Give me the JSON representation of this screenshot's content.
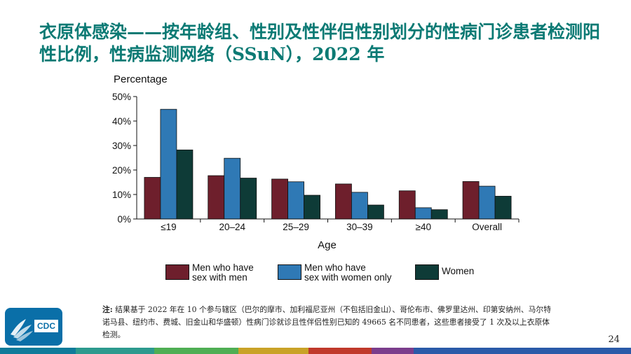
{
  "slide": {
    "title": "衣原体感染——按年龄组、性别及性伴侣性别划分的性病门诊患者检测阳性比例，性病监测网络（SSuN），2022 年",
    "note_label": "注:",
    "note_text": "结果基于 2022 年在 10 个参与辖区（巴尔的摩市、加利福尼亚州（不包括旧金山）、哥伦布市、佛罗里达州、印第安纳州、马尔特诺马县、纽约市、费城、旧金山和华盛顿）性病门诊就诊且性伴侣性别已知的 49665 名不同患者，这些患者接受了 1 次及以上衣原体检测。",
    "page_number": "24",
    "logo_text": "CDC"
  },
  "chart_data": {
    "type": "bar",
    "ylabel": "Percentage",
    "xlabel": "Age",
    "ylim": [
      0,
      50
    ],
    "yticks": [
      "0%",
      "10%",
      "20%",
      "30%",
      "40%",
      "50%"
    ],
    "categories": [
      "≤19",
      "20–24",
      "25–29",
      "30–39",
      "≥40",
      "Overall"
    ],
    "series": [
      {
        "name": "Men who have\nsex with men",
        "color": "#6e1f2c",
        "values": [
          17.0,
          17.7,
          16.3,
          14.3,
          11.5,
          15.3
        ]
      },
      {
        "name": "Men who have\nsex with women only",
        "color": "#2f79b5",
        "values": [
          44.8,
          24.8,
          15.2,
          10.9,
          4.6,
          13.4
        ]
      },
      {
        "name": "Women",
        "color": "#0e3b37",
        "values": [
          28.2,
          16.7,
          9.7,
          5.7,
          3.8,
          9.3
        ]
      }
    ],
    "legend": "bottom",
    "grid": false
  },
  "colors": {
    "title": "#0b7a74",
    "bottom_bar": [
      "#0f7b9a",
      "#2d9a8e",
      "#4fae54",
      "#c9a227",
      "#c0392b",
      "#7b3d8c",
      "#2a5aa8"
    ]
  }
}
